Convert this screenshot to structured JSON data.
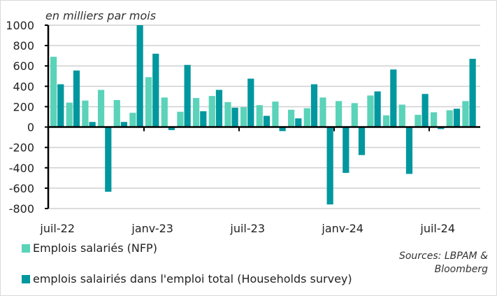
{
  "chart_data": {
    "type": "bar",
    "unit_note": "en milliers par mois",
    "categories": [
      "juil-22",
      "août-22",
      "sept-22",
      "oct-22",
      "nov-22",
      "déc-22",
      "janv-23",
      "févr-23",
      "mars-23",
      "avr-23",
      "mai-23",
      "juin-23",
      "juil-23",
      "août-23",
      "sept-23",
      "oct-23",
      "nov-23",
      "déc-23",
      "janv-24",
      "févr-24",
      "mars-24",
      "avr-24",
      "mai-24",
      "juin-24",
      "juil-24",
      "août-24",
      "sept-24"
    ],
    "x_tick_labels": [
      "juil-22",
      "janv-23",
      "juil-23",
      "janv-24",
      "juil-24"
    ],
    "ylim": [
      -800,
      1000
    ],
    "y_ticks": [
      -800,
      -600,
      -400,
      -200,
      0,
      200,
      400,
      600,
      800,
      1000
    ],
    "grid": true,
    "legend_position": "bottom-left",
    "series": [
      {
        "name": "Emplois salariés (NFP)",
        "color": "#5ad3b9",
        "values": [
          690,
          240,
          260,
          365,
          265,
          140,
          490,
          290,
          150,
          285,
          305,
          245,
          195,
          215,
          250,
          170,
          185,
          290,
          255,
          235,
          310,
          115,
          220,
          120,
          145,
          165,
          255
        ]
      },
      {
        "name": "emplois salairiés dans l'emploi total (Households survey)",
        "color": "#00979e",
        "values": [
          420,
          555,
          50,
          -635,
          50,
          1000,
          720,
          -30,
          610,
          155,
          365,
          190,
          475,
          110,
          -40,
          85,
          420,
          -760,
          -450,
          -275,
          350,
          565,
          -460,
          325,
          -20,
          180,
          670
        ]
      }
    ],
    "source": [
      "Sources: LBPAM &",
      "Bloomberg"
    ]
  }
}
